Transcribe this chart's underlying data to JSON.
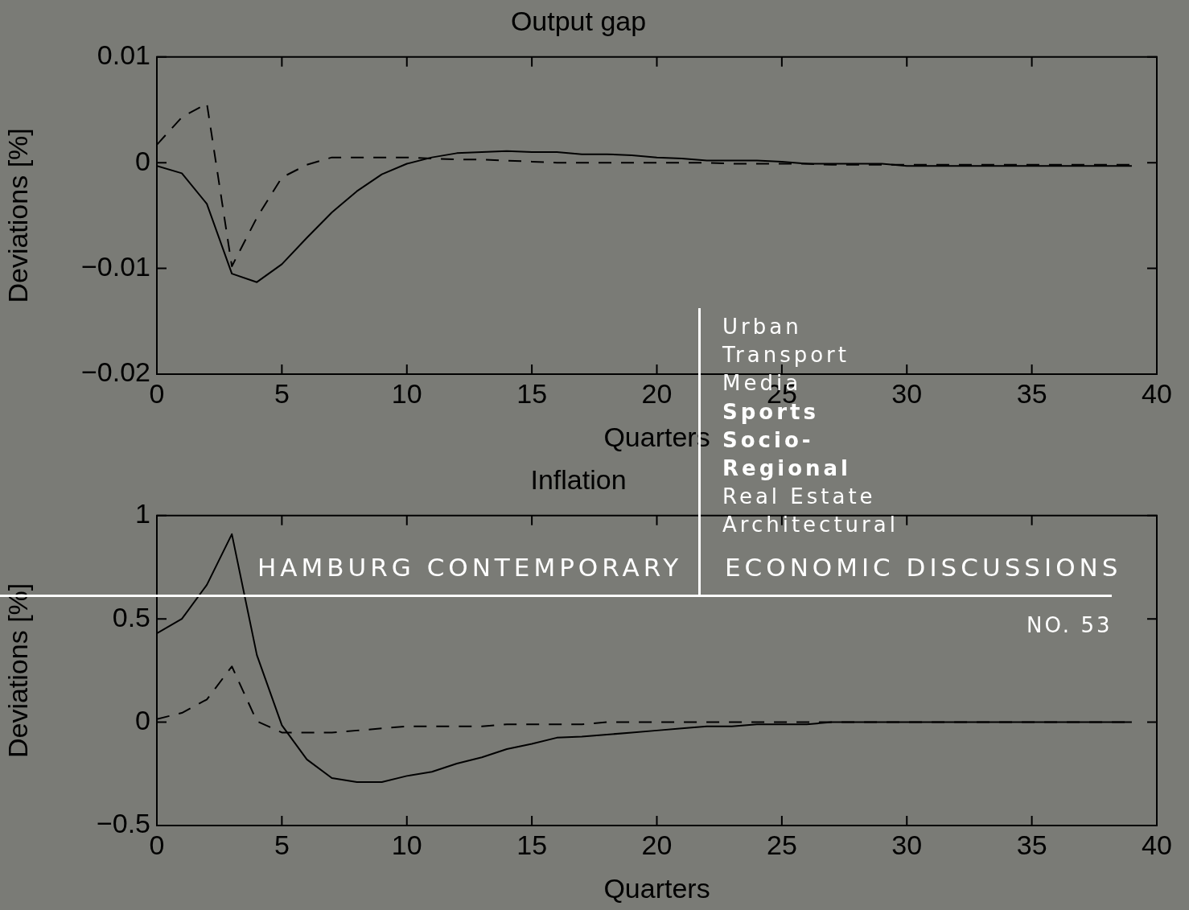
{
  "chart_data": [
    {
      "type": "line",
      "title": "Output gap",
      "xlabel": "Quarters",
      "ylabel": "Deviations [%]",
      "xlim": [
        0,
        40
      ],
      "xticks": [
        0,
        5,
        10,
        15,
        20,
        25,
        30,
        35,
        40
      ],
      "ylim": [
        -0.02,
        0.01
      ],
      "yticks": [
        {
          "value": -0.02,
          "label": "−0.02"
        },
        {
          "value": -0.01,
          "label": "−0.01"
        },
        0,
        0.01
      ],
      "grid": false,
      "legend": false,
      "marker": "none",
      "x": [
        0,
        1,
        2,
        3,
        4,
        5,
        6,
        7,
        8,
        9,
        10,
        11,
        12,
        13,
        14,
        15,
        16,
        17,
        18,
        19,
        20,
        21,
        22,
        23,
        24,
        25,
        26,
        27,
        28,
        29,
        30,
        31,
        32,
        33,
        34,
        35,
        36,
        37,
        38,
        39
      ],
      "series": [
        {
          "color": "#000000",
          "line_style": "solid",
          "values": [
            -0.0003,
            -0.001,
            -0.0039,
            -0.0105,
            -0.0113,
            -0.0096,
            -0.0071,
            -0.0047,
            -0.0027,
            -0.0011,
            -0.0001,
            0.0005,
            0.0009,
            0.001,
            0.0011,
            0.001,
            0.001,
            0.0008,
            0.0008,
            0.0007,
            0.0005,
            0.0004,
            0.0002,
            0.0002,
            0.0002,
            0.0001,
            -0.0001,
            -0.0001,
            -0.0001,
            -0.0001,
            -0.0003,
            -0.0003,
            -0.0003,
            -0.0003,
            -0.0003,
            -0.0003,
            -0.0003,
            -0.0003,
            -0.0003,
            -0.0003
          ]
        },
        {
          "color": "#000000",
          "line_style": "dashed",
          "values": [
            0.0017,
            0.0043,
            0.0056,
            -0.0098,
            -0.0052,
            -0.0014,
            -0.0002,
            0.0005,
            0.0005,
            0.0005,
            0.0005,
            0.0004,
            0.0003,
            0.0003,
            0.0002,
            0.0001,
            0,
            0,
            0,
            0,
            0,
            0,
            0,
            -0.0001,
            -0.0001,
            -0.0001,
            -0.0001,
            -0.0002,
            -0.0002,
            -0.0002,
            -0.0002,
            -0.0002,
            -0.0002,
            -0.0002,
            -0.0002,
            -0.0002,
            -0.0002,
            -0.0002,
            -0.0002,
            -0.0002
          ]
        }
      ],
      "annotations": [
        "Urban",
        "Transport",
        "Media",
        "Sports",
        "Socio-",
        "Regional",
        "Real Estate",
        "Architectural",
        "HAMBURG CONTEMPORARY",
        "ECONOMIC DISCUSSIONS",
        "NO. 53"
      ]
    },
    {
      "type": "line",
      "title": "Inflation",
      "xlabel": "Quarters",
      "ylabel": "Deviations [%]",
      "xlim": [
        0,
        40
      ],
      "xticks": [
        0,
        5,
        10,
        15,
        20,
        25,
        30,
        35,
        40
      ],
      "ylim": [
        -0.5,
        1
      ],
      "yticks": [
        {
          "value": -0.5,
          "label": "−0.5"
        },
        0,
        0.5,
        1
      ],
      "grid": false,
      "legend": false,
      "marker": "none",
      "x": [
        0,
        1,
        2,
        3,
        4,
        5,
        6,
        7,
        8,
        9,
        10,
        11,
        12,
        13,
        14,
        15,
        16,
        17,
        18,
        19,
        20,
        21,
        22,
        23,
        24,
        25,
        26,
        27,
        28,
        29,
        30,
        31,
        32,
        33,
        34,
        35,
        36,
        37,
        38,
        39
      ],
      "series": [
        {
          "color": "#000000",
          "line_style": "solid",
          "values": [
            0.43,
            0.5,
            0.665,
            0.91,
            0.325,
            -0.015,
            -0.18,
            -0.27,
            -0.29,
            -0.29,
            -0.26,
            -0.24,
            -0.2,
            -0.17,
            -0.13,
            -0.105,
            -0.075,
            -0.07,
            -0.06,
            -0.05,
            -0.04,
            -0.03,
            -0.02,
            -0.02,
            -0.01,
            -0.01,
            -0.01,
            0,
            0,
            0,
            0,
            0,
            0,
            0,
            0,
            0,
            0,
            0,
            0,
            0
          ]
        },
        {
          "color": "#000000",
          "line_style": "dashed",
          "values": [
            0.015,
            0.045,
            0.11,
            0.27,
            0.005,
            -0.05,
            -0.05,
            -0.05,
            -0.04,
            -0.03,
            -0.02,
            -0.02,
            -0.02,
            -0.02,
            -0.01,
            -0.01,
            -0.01,
            -0.01,
            0,
            0,
            0,
            0,
            0,
            0,
            0,
            0,
            0,
            0,
            0,
            0,
            0,
            0,
            0,
            0,
            0,
            0,
            0,
            0,
            0,
            0
          ]
        }
      ]
    }
  ]
}
